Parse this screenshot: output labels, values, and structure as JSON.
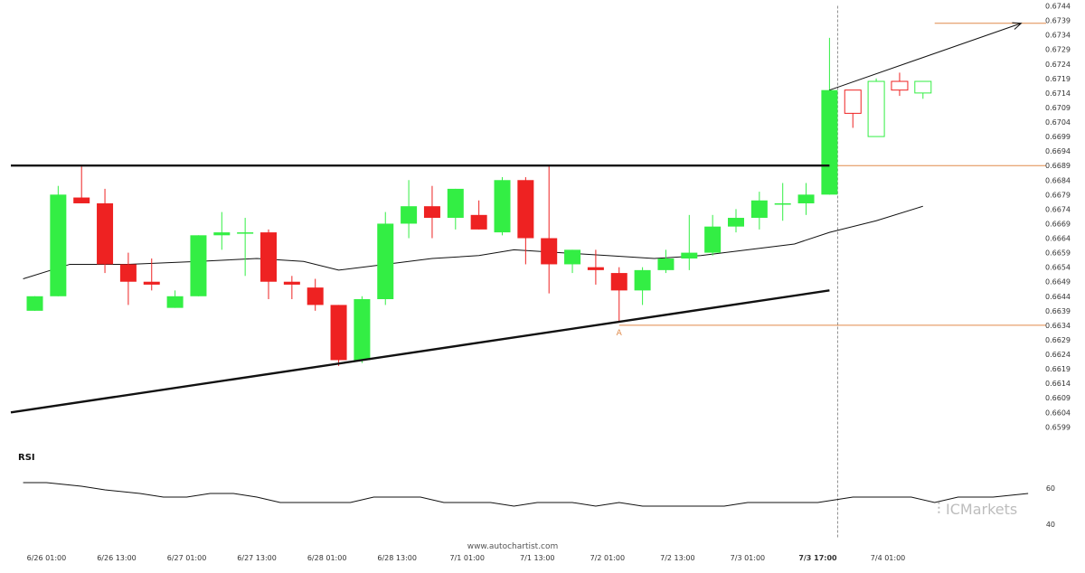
{
  "rsi_label": "RSI",
  "watermark": "www.autochartist.com",
  "brand": {
    "prefix": "IC",
    "suffix": "Markets"
  },
  "pattern_point_label": "A",
  "colors": {
    "up": "#33ee44",
    "down": "#ee2222",
    "orange_line": "#e08a4a",
    "trend": "#111111",
    "axis_text": "#333333"
  },
  "chart_data": {
    "type": "candlestick",
    "title": "",
    "y_ticks": [
      "0.6744",
      "0.6739",
      "0.6734",
      "0.6729",
      "0.6724",
      "0.6719",
      "0.6714",
      "0.6709",
      "0.6704",
      "0.6699",
      "0.6694",
      "0.6689",
      "0.6684",
      "0.6679",
      "0.6674",
      "0.6669",
      "0.6664",
      "0.6659",
      "0.6654",
      "0.6649",
      "0.6644",
      "0.6639",
      "0.6634",
      "0.6629",
      "0.6624",
      "0.6619",
      "0.6614",
      "0.6609",
      "0.6604",
      "0.6599"
    ],
    "ylim": [
      0.6596,
      0.6744
    ],
    "x_ticks": [
      {
        "i": 0.5,
        "label": "6/26 01:00"
      },
      {
        "i": 3.5,
        "label": "6/26 13:00"
      },
      {
        "i": 6.5,
        "label": "6/27 01:00"
      },
      {
        "i": 9.5,
        "label": "6/27 13:00"
      },
      {
        "i": 12.5,
        "label": "6/28 01:00"
      },
      {
        "i": 15.5,
        "label": "6/28 13:00"
      },
      {
        "i": 18.5,
        "label": "7/1 01:00"
      },
      {
        "i": 21.5,
        "label": "7/1 13:00"
      },
      {
        "i": 24.5,
        "label": "7/2 01:00"
      },
      {
        "i": 27.5,
        "label": "7/2 13:00"
      },
      {
        "i": 30.5,
        "label": "7/3 01:00"
      },
      {
        "i": 33.5,
        "label": "7/3 17:00",
        "bold": true
      },
      {
        "i": 36.5,
        "label": "7/4 01:00"
      }
    ],
    "candles": [
      {
        "o": 0.6639,
        "h": 0.6644,
        "l": 0.6639,
        "c": 0.6644
      },
      {
        "o": 0.6644,
        "h": 0.6682,
        "l": 0.6644,
        "c": 0.6679
      },
      {
        "o": 0.6678,
        "h": 0.6689,
        "l": 0.6676,
        "c": 0.6676
      },
      {
        "o": 0.6676,
        "h": 0.6681,
        "l": 0.6652,
        "c": 0.6655
      },
      {
        "o": 0.6655,
        "h": 0.6659,
        "l": 0.6641,
        "c": 0.6649
      },
      {
        "o": 0.6649,
        "h": 0.6657,
        "l": 0.6646,
        "c": 0.6648
      },
      {
        "o": 0.664,
        "h": 0.6646,
        "l": 0.664,
        "c": 0.6644
      },
      {
        "o": 0.6644,
        "h": 0.6665,
        "l": 0.6644,
        "c": 0.6665
      },
      {
        "o": 0.6665,
        "h": 0.6673,
        "l": 0.666,
        "c": 0.6666
      },
      {
        "o": 0.6666,
        "h": 0.6671,
        "l": 0.6651,
        "c": 0.6666
      },
      {
        "o": 0.6666,
        "h": 0.6667,
        "l": 0.6643,
        "c": 0.6649
      },
      {
        "o": 0.6649,
        "h": 0.6651,
        "l": 0.6643,
        "c": 0.6648
      },
      {
        "o": 0.6647,
        "h": 0.665,
        "l": 0.6639,
        "c": 0.6641
      },
      {
        "o": 0.6641,
        "h": 0.6641,
        "l": 0.662,
        "c": 0.6622
      },
      {
        "o": 0.6622,
        "h": 0.6644,
        "l": 0.6621,
        "c": 0.6643
      },
      {
        "o": 0.6643,
        "h": 0.6673,
        "l": 0.6641,
        "c": 0.6669
      },
      {
        "o": 0.6669,
        "h": 0.6684,
        "l": 0.6664,
        "c": 0.6675
      },
      {
        "o": 0.6675,
        "h": 0.6682,
        "l": 0.6664,
        "c": 0.6671
      },
      {
        "o": 0.6671,
        "h": 0.6681,
        "l": 0.6667,
        "c": 0.6681
      },
      {
        "o": 0.6672,
        "h": 0.6677,
        "l": 0.6667,
        "c": 0.6667
      },
      {
        "o": 0.6666,
        "h": 0.6685,
        "l": 0.6665,
        "c": 0.6684
      },
      {
        "o": 0.6684,
        "h": 0.6685,
        "l": 0.6655,
        "c": 0.6664
      },
      {
        "o": 0.6664,
        "h": 0.6689,
        "l": 0.6645,
        "c": 0.6655
      },
      {
        "o": 0.6655,
        "h": 0.666,
        "l": 0.6652,
        "c": 0.666
      },
      {
        "o": 0.6654,
        "h": 0.666,
        "l": 0.6648,
        "c": 0.6653
      },
      {
        "o": 0.6652,
        "h": 0.6654,
        "l": 0.6635,
        "c": 0.6646
      },
      {
        "o": 0.6646,
        "h": 0.6654,
        "l": 0.6641,
        "c": 0.6653
      },
      {
        "o": 0.6653,
        "h": 0.666,
        "l": 0.6652,
        "c": 0.6657
      },
      {
        "o": 0.6657,
        "h": 0.6672,
        "l": 0.6653,
        "c": 0.6659
      },
      {
        "o": 0.6659,
        "h": 0.6672,
        "l": 0.6658,
        "c": 0.6668
      },
      {
        "o": 0.6668,
        "h": 0.6674,
        "l": 0.6666,
        "c": 0.6671
      },
      {
        "o": 0.6671,
        "h": 0.668,
        "l": 0.6667,
        "c": 0.6677
      },
      {
        "o": 0.6676,
        "h": 0.6683,
        "l": 0.667,
        "c": 0.6676
      },
      {
        "o": 0.6676,
        "h": 0.6683,
        "l": 0.6672,
        "c": 0.6679
      },
      {
        "o": 0.6679,
        "h": 0.6733,
        "l": 0.6679,
        "c": 0.6715
      },
      {
        "o": 0.6715,
        "h": 0.6715,
        "l": 0.6702,
        "c": 0.6707
      },
      {
        "o": 0.6699,
        "h": 0.6719,
        "l": 0.6699,
        "c": 0.6718
      },
      {
        "o": 0.6718,
        "h": 0.6721,
        "l": 0.6713,
        "c": 0.6715,
        "hollow": true,
        "color": "down"
      },
      {
        "o": 0.6714,
        "h": 0.6718,
        "l": 0.6712,
        "c": 0.6718,
        "hollow": true,
        "color": "up"
      }
    ],
    "hollow_indices": [
      35,
      36,
      37,
      38
    ],
    "moving_average": [
      {
        "i": -0.5,
        "v": 0.665
      },
      {
        "i": 1.5,
        "v": 0.6655
      },
      {
        "i": 4,
        "v": 0.6655
      },
      {
        "i": 7,
        "v": 0.6656
      },
      {
        "i": 9.5,
        "v": 0.6657
      },
      {
        "i": 11.5,
        "v": 0.6656
      },
      {
        "i": 13,
        "v": 0.6653
      },
      {
        "i": 15,
        "v": 0.6655
      },
      {
        "i": 17,
        "v": 0.6657
      },
      {
        "i": 19,
        "v": 0.6658
      },
      {
        "i": 20.5,
        "v": 0.666
      },
      {
        "i": 22.5,
        "v": 0.6659
      },
      {
        "i": 24.5,
        "v": 0.6658
      },
      {
        "i": 26.5,
        "v": 0.6657
      },
      {
        "i": 28.5,
        "v": 0.6658
      },
      {
        "i": 30.5,
        "v": 0.666
      },
      {
        "i": 32.5,
        "v": 0.6662
      },
      {
        "i": 34,
        "v": 0.6666
      },
      {
        "i": 36,
        "v": 0.667
      },
      {
        "i": 38,
        "v": 0.6675
      }
    ],
    "resistance": {
      "from": {
        "i": -0.5,
        "v": 0.6689
      },
      "to": {
        "i": 34.0,
        "v": 0.6689
      }
    },
    "support": {
      "from": {
        "i": -0.5,
        "v": 0.6604
      },
      "to": {
        "i": 34.0,
        "v": 0.6646
      }
    },
    "projection": {
      "from": {
        "i": 34.0,
        "v": 0.6715
      },
      "to": {
        "i": 42.2,
        "v": 0.6738
      }
    },
    "levels": [
      {
        "name": "target",
        "v": 0.6738,
        "from_i": 38.5,
        "to_i": 43.5
      },
      {
        "name": "breakout",
        "v": 0.6689,
        "from_i": 34.0,
        "to_i": 43.5
      },
      {
        "name": "point_a",
        "v": 0.6634,
        "from_i": 25.0,
        "to_i": 43.5
      }
    ],
    "breakout_index": 34,
    "point_a_index": 25,
    "rsi": {
      "ticks": [
        60,
        40
      ],
      "ylim": [
        35,
        70
      ],
      "values": [
        {
          "i": -0.5,
          "v": 63
        },
        {
          "i": 0.5,
          "v": 63
        },
        {
          "i": 2,
          "v": 61
        },
        {
          "i": 3,
          "v": 59
        },
        {
          "i": 4.5,
          "v": 57
        },
        {
          "i": 5.5,
          "v": 55
        },
        {
          "i": 6.5,
          "v": 55
        },
        {
          "i": 7.5,
          "v": 57
        },
        {
          "i": 8.5,
          "v": 57
        },
        {
          "i": 9.5,
          "v": 55
        },
        {
          "i": 10.5,
          "v": 52
        },
        {
          "i": 13.5,
          "v": 52
        },
        {
          "i": 14.5,
          "v": 55
        },
        {
          "i": 16.5,
          "v": 55
        },
        {
          "i": 17.5,
          "v": 52
        },
        {
          "i": 19.5,
          "v": 52
        },
        {
          "i": 20.5,
          "v": 50
        },
        {
          "i": 21.5,
          "v": 52
        },
        {
          "i": 23,
          "v": 52
        },
        {
          "i": 24,
          "v": 50
        },
        {
          "i": 25,
          "v": 52
        },
        {
          "i": 26,
          "v": 50
        },
        {
          "i": 29.5,
          "v": 50
        },
        {
          "i": 30.5,
          "v": 52
        },
        {
          "i": 33.5,
          "v": 52
        },
        {
          "i": 35,
          "v": 55
        },
        {
          "i": 37.5,
          "v": 55
        },
        {
          "i": 38.5,
          "v": 52
        },
        {
          "i": 39.5,
          "v": 55
        },
        {
          "i": 41,
          "v": 55
        },
        {
          "i": 42.5,
          "v": 57
        }
      ]
    }
  }
}
